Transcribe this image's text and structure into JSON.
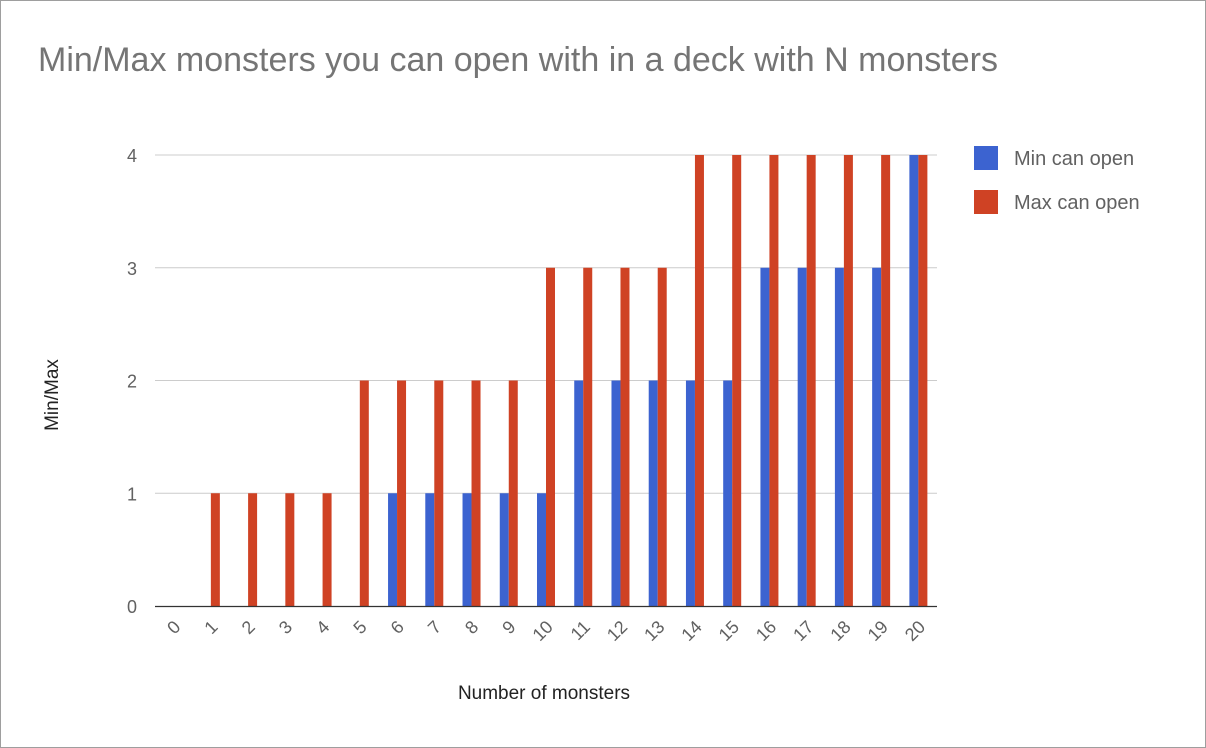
{
  "chart_data": {
    "type": "bar",
    "title": "Min/Max monsters you can open with in a deck with N monsters",
    "xlabel": "Number of monsters",
    "ylabel": "Min/Max",
    "categories": [
      "0",
      "1",
      "2",
      "3",
      "4",
      "5",
      "6",
      "7",
      "8",
      "9",
      "10",
      "11",
      "12",
      "13",
      "14",
      "15",
      "16",
      "17",
      "18",
      "19",
      "20"
    ],
    "series": [
      {
        "name": "Min can open",
        "color": "#3c63d0",
        "values": [
          0,
          0,
          0,
          0,
          0,
          0,
          1,
          1,
          1,
          1,
          1,
          2,
          2,
          2,
          2,
          2,
          3,
          3,
          3,
          3,
          4
        ]
      },
      {
        "name": "Max can open",
        "color": "#cf4224",
        "values": [
          0,
          1,
          1,
          1,
          1,
          2,
          2,
          2,
          2,
          2,
          3,
          3,
          3,
          3,
          4,
          4,
          4,
          4,
          4,
          4,
          4
        ]
      }
    ],
    "ylim": [
      0,
      4
    ],
    "yticks": [
      "0",
      "1",
      "2",
      "3",
      "4"
    ],
    "grid": true,
    "legend": "right"
  }
}
